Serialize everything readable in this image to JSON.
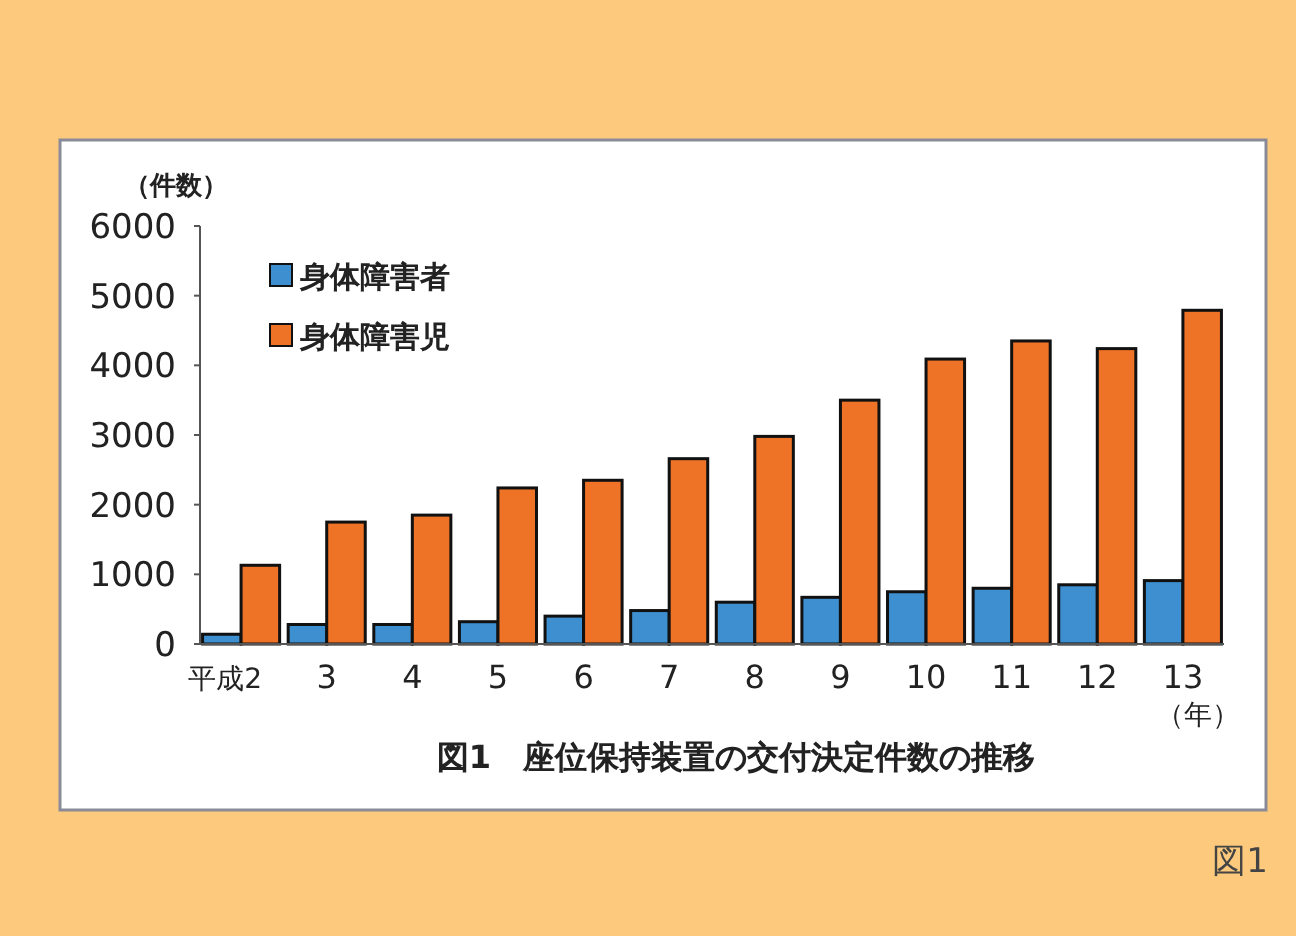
{
  "chart_data": {
    "type": "bar",
    "title": "図1　座位保持装置の交付決定件数の推移",
    "ylabel": "（件数）",
    "xlabel": "（年）",
    "annotations": [
      "図1"
    ],
    "categories": [
      "平成2",
      "3",
      "4",
      "5",
      "6",
      "7",
      "8",
      "9",
      "10",
      "11",
      "12",
      "13"
    ],
    "series": [
      {
        "name": "身体障害者",
        "color": "#3d8fd0",
        "values": [
          140,
          280,
          280,
          320,
          400,
          480,
          600,
          670,
          750,
          800,
          850,
          910
        ]
      },
      {
        "name": "身体障害児",
        "color": "#ef7326",
        "values": [
          1130,
          1750,
          1850,
          2240,
          2350,
          2660,
          2980,
          3500,
          4090,
          4350,
          4240,
          4790
        ]
      }
    ],
    "ylim": [
      0,
      6000
    ],
    "yticks": [
      0,
      1000,
      2000,
      3000,
      4000,
      5000,
      6000
    ],
    "grid": false,
    "legend": "top left"
  }
}
